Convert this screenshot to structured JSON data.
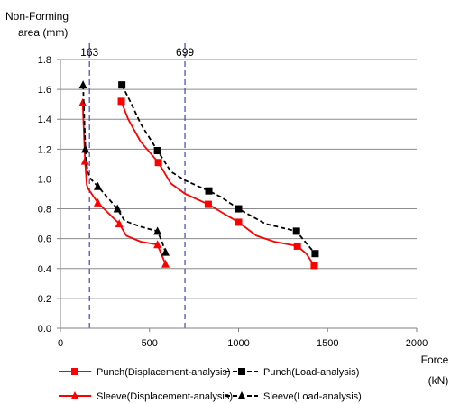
{
  "chart_data": {
    "type": "line",
    "ylabel_lines": [
      "Non-Forming",
      "area (mm)"
    ],
    "xlabel_lines": [
      "Force",
      "(kN)"
    ],
    "xlim": [
      0,
      2000
    ],
    "ylim": [
      0,
      1.8
    ],
    "x_ticks": [
      "0",
      "500",
      "1000",
      "1500",
      "2000"
    ],
    "y_ticks": [
      "0.0",
      "0.2",
      "0.4",
      "0.6",
      "0.8",
      "1.0",
      "1.2",
      "1.4",
      "1.6",
      "1.8"
    ],
    "grid": true,
    "legend_position": "bottom",
    "reference_lines": [
      {
        "x": 163,
        "label": "163",
        "color": "#4040c0"
      },
      {
        "x": 699,
        "label": "699",
        "color": "#4040c0"
      }
    ],
    "series": [
      {
        "name": "Punch(Displacement-analysis)",
        "color": "#ff0000",
        "dash": "solid",
        "marker": "square",
        "x": [
          342,
          380,
          450,
          550,
          620,
          700,
          830,
          900,
          1000,
          1100,
          1200,
          1330,
          1380,
          1425
        ],
        "y": [
          1.52,
          1.4,
          1.25,
          1.11,
          0.97,
          0.9,
          0.83,
          0.78,
          0.71,
          0.62,
          0.58,
          0.55,
          0.5,
          0.42
        ],
        "markers_at": [
          0,
          3,
          6,
          8,
          11,
          13
        ]
      },
      {
        "name": "Punch(Load-analysis)",
        "color": "#000000",
        "dash": "dashed",
        "marker": "square",
        "x": [
          345,
          400,
          450,
          545,
          620,
          700,
          833,
          900,
          1000,
          1150,
          1325,
          1380,
          1430
        ],
        "y": [
          1.63,
          1.5,
          1.37,
          1.19,
          1.05,
          0.99,
          0.92,
          0.88,
          0.8,
          0.7,
          0.65,
          0.57,
          0.5
        ],
        "markers_at": [
          0,
          3,
          6,
          8,
          10,
          12
        ]
      },
      {
        "name": "Sleeve(Displacement-analysis)",
        "color": "#ff0000",
        "dash": "solid",
        "marker": "triangle",
        "x": [
          125,
          138,
          148,
          158,
          210,
          330,
          370,
          450,
          545,
          565,
          590
        ],
        "y": [
          1.51,
          1.12,
          0.96,
          0.93,
          0.84,
          0.7,
          0.62,
          0.58,
          0.56,
          0.5,
          0.43
        ],
        "markers_at": [
          0,
          1,
          4,
          5,
          8,
          10
        ]
      },
      {
        "name": "Sleeve(Load-analysis)",
        "color": "#000000",
        "dash": "dashed",
        "marker": "triangle",
        "x": [
          127,
          140,
          152,
          170,
          210,
          320,
          360,
          450,
          545,
          570,
          590
        ],
        "y": [
          1.63,
          1.2,
          1.05,
          1.0,
          0.95,
          0.8,
          0.72,
          0.68,
          0.65,
          0.58,
          0.51
        ],
        "markers_at": [
          0,
          1,
          4,
          5,
          8,
          10
        ]
      }
    ]
  }
}
